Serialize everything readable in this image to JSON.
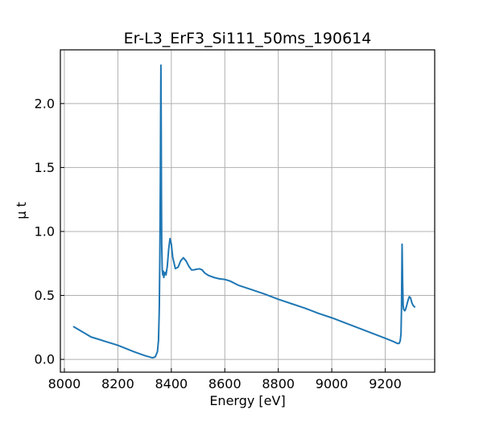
{
  "chart_data": {
    "type": "line",
    "title": "Er-L3_ErF3_Si111_50ms_190614",
    "xlabel": "Energy [eV]",
    "ylabel": "μ t",
    "xlim": [
      7985,
      9385
    ],
    "ylim": [
      -0.1,
      2.42
    ],
    "xticks": [
      8000,
      8200,
      8400,
      8600,
      8800,
      9000,
      9200
    ],
    "xtick_labels": [
      "8000",
      "8200",
      "8400",
      "8600",
      "8800",
      "9000",
      "9200"
    ],
    "yticks": [
      0.0,
      0.5,
      1.0,
      1.5,
      2.0
    ],
    "ytick_labels": [
      "0.0",
      "0.5",
      "1.0",
      "1.5",
      "2.0"
    ],
    "grid": true,
    "tick_direction": "in",
    "series": [
      {
        "color": "#1f77b4",
        "x": [
          8035,
          8100,
          8200,
          8260,
          8300,
          8330,
          8340,
          8348,
          8352,
          8355,
          8357,
          8359,
          8360,
          8361,
          8362,
          8363,
          8364,
          8366,
          8368,
          8370,
          8372,
          8374,
          8377,
          8380,
          8385,
          8390,
          8395,
          8400,
          8405,
          8415,
          8425,
          8435,
          8445,
          8455,
          8465,
          8475,
          8485,
          8495,
          8505,
          8515,
          8525,
          8540,
          8560,
          8580,
          8600,
          8620,
          8650,
          8700,
          8750,
          8800,
          8850,
          8900,
          8950,
          9000,
          9050,
          9100,
          9150,
          9200,
          9230,
          9245,
          9252,
          9256,
          9259,
          9261,
          9263,
          9265,
          9267,
          9269,
          9271,
          9273,
          9276,
          9280,
          9285,
          9290,
          9295,
          9300,
          9305,
          9310
        ],
        "y": [
          0.255,
          0.175,
          0.11,
          0.06,
          0.03,
          0.012,
          0.02,
          0.06,
          0.15,
          0.4,
          0.8,
          1.4,
          1.9,
          2.3,
          1.9,
          1.3,
          0.9,
          0.7,
          0.66,
          0.69,
          0.64,
          0.67,
          0.68,
          0.66,
          0.73,
          0.86,
          0.945,
          0.9,
          0.8,
          0.71,
          0.72,
          0.77,
          0.795,
          0.77,
          0.73,
          0.7,
          0.7,
          0.705,
          0.708,
          0.7,
          0.675,
          0.655,
          0.64,
          0.63,
          0.625,
          0.612,
          0.58,
          0.545,
          0.51,
          0.47,
          0.435,
          0.4,
          0.36,
          0.325,
          0.285,
          0.245,
          0.205,
          0.165,
          0.14,
          0.125,
          0.125,
          0.145,
          0.2,
          0.42,
          0.9,
          0.6,
          0.42,
          0.39,
          0.385,
          0.38,
          0.39,
          0.42,
          0.46,
          0.49,
          0.48,
          0.44,
          0.42,
          0.41
        ]
      }
    ]
  }
}
